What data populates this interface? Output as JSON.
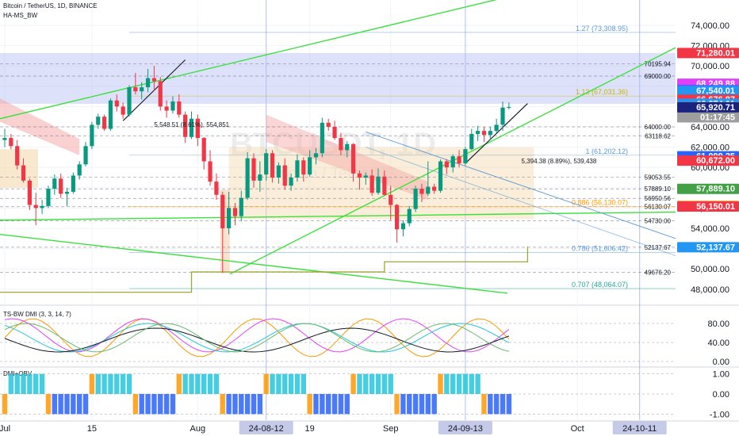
{
  "header": {
    "symbol_line": "Bitcoin / TetherUS, 1D, BINANCE",
    "indicator_1": "HA-MS_BW",
    "indicator_2": "TS-BW DMI (3, 3, 14, 7)",
    "indicator_3": "DMI+OBV"
  },
  "watermark": {
    "text": "BTCUSDT, 1D",
    "subtext": "Bitcoin / TetherUS"
  },
  "colors": {
    "up_candle": "#089981",
    "down_candle": "#f23645",
    "green_line": "#3ce03c",
    "red_tag": "#f23645",
    "blue_tag": "#2962ff",
    "green_tag": "#43a047",
    "orange_tag": "#ff9800",
    "fib_blue": "#5b9bd5",
    "zone_blue": "#b3bdf5",
    "zone_tan": "#f3d9ae"
  },
  "chart_data": [
    {
      "type": "candlestick",
      "title": "Bitcoin / TetherUS, 1D, BINANCE",
      "ylim": [
        46500,
        76500
      ],
      "x_axis": {
        "ticks": [
          {
            "label": "Jul",
            "day": 0
          },
          {
            "label": "15",
            "day": 14
          },
          {
            "label": "Aug",
            "day": 31
          },
          {
            "label": "19",
            "day": 49
          },
          {
            "label": "Sep",
            "day": 62
          },
          {
            "label": "Oct",
            "day": 92
          }
        ],
        "highlighted": [
          {
            "label": "24-08-12",
            "day": 42
          },
          {
            "label": "24-09-13",
            "day": 74
          },
          {
            "label": "24-10-11",
            "day": 102
          }
        ]
      },
      "y_axis_ticks": [
        48000,
        50000,
        52000,
        54000,
        56000,
        58000,
        60000,
        62000,
        64000,
        66000,
        68000,
        70000,
        72000,
        74000
      ],
      "y_axis_tick_labels": [
        "48,000.00",
        "50,000.00",
        "52,000.00",
        "54,000.00",
        "56,000.00",
        "58,000.00",
        "60,000.00",
        "62,000.00",
        "64,000.00",
        "66,000.00",
        "68,000.00",
        "70,000.00",
        "72,000.00",
        "74,000.00"
      ],
      "price_tags": [
        {
          "label": "71,280.01",
          "value": 71280.01,
          "color": "#f23645"
        },
        {
          "label": "68,249.88",
          "value": 68249.88,
          "color": "#e040fb"
        },
        {
          "label": "67,614.25",
          "value": 67614.25,
          "color": "#2962ff"
        },
        {
          "label": "67,540.01",
          "value": 67540.01,
          "color": "#2196f3"
        },
        {
          "label": "66,676.87",
          "value": 66676.87,
          "color": "#f23645"
        },
        {
          "label": "66,274.01",
          "value": 66274.01,
          "color": "#2196f3"
        },
        {
          "label": "65,955.77",
          "value": 65955.77,
          "color": "#9e9e9e",
          "extra": "01:17:45"
        },
        {
          "label": "65,920.71",
          "value": 65920.71,
          "color": "#1a237e"
        },
        {
          "label": "61,099.25",
          "value": 61099.25,
          "color": "#2962ff"
        },
        {
          "label": "60,672.00",
          "value": 60672.0,
          "color": "#f23645"
        },
        {
          "label": "57,889.10",
          "value": 57889.1,
          "color": "#43a047"
        },
        {
          "label": "56,204.13",
          "value": 56204.13,
          "color": "#ff9800"
        },
        {
          "label": "56,150.01",
          "value": 56150.01,
          "color": "#f23645"
        },
        {
          "label": "52,137.67",
          "value": 52137.67,
          "color": "#2196f3"
        }
      ],
      "level_labels": [
        {
          "label": "70195.94",
          "value": 70195.94
        },
        {
          "label": "69000.00",
          "value": 69000
        },
        {
          "label": "64000.00",
          "value": 64000
        },
        {
          "label": "63118.62",
          "value": 63118.62
        },
        {
          "label": "59053.55",
          "value": 59053.55
        },
        {
          "label": "57889.10",
          "value": 57889.1
        },
        {
          "label": "56950.56",
          "value": 56950.56
        },
        {
          "label": "56130.07",
          "value": 56130.07
        },
        {
          "label": "54730.00",
          "value": 54730
        },
        {
          "label": "52137.67",
          "value": 52137.67
        },
        {
          "label": "49676.20",
          "value": 49676.2
        }
      ],
      "fib_labels": [
        {
          "label": "1.27 (73,308.95)",
          "value": 73308.95,
          "color": "#5b9bd5"
        },
        {
          "label": "1.13 (67,031.36)",
          "value": 67031.36,
          "color": "#c8b400"
        },
        {
          "label": "1 (61,202.12)",
          "value": 61202.12,
          "color": "#5b9bd5"
        },
        {
          "label": "0.886 (56,130.07)",
          "value": 56130.07,
          "color": "#ff9800"
        },
        {
          "label": "0.786 (51,606.42)",
          "value": 51606.42,
          "color": "#5b9bd5"
        },
        {
          "label": "0.707 (48,064.07)",
          "value": 48064.07,
          "color": "#26a69a"
        }
      ],
      "annotations": [
        {
          "label": "5,548.51 (8.61%), 554,851",
          "day": 24,
          "value": 64000
        },
        {
          "label": "5,394.38 (8.89%), 539,438",
          "day": 83,
          "value": 60400
        }
      ],
      "ohlc": [
        [
          62700,
          63800,
          62000,
          62900
        ],
        [
          62900,
          63300,
          61800,
          62100
        ],
        [
          62100,
          62700,
          59800,
          60200
        ],
        [
          60200,
          60900,
          58500,
          58700
        ],
        [
          58700,
          58900,
          55800,
          56300
        ],
        [
          56300,
          57500,
          54300,
          56000
        ],
        [
          56000,
          56800,
          55400,
          56200
        ],
        [
          56200,
          58200,
          56000,
          57900
        ],
        [
          57900,
          59300,
          57300,
          58900
        ],
        [
          58900,
          59400,
          57000,
          57400
        ],
        [
          57400,
          58000,
          56200,
          57600
        ],
        [
          57600,
          59500,
          57400,
          59200
        ],
        [
          59200,
          60600,
          58800,
          60300
        ],
        [
          60300,
          62500,
          60100,
          62100
        ],
        [
          62100,
          64500,
          61800,
          64200
        ],
        [
          64200,
          65300,
          63800,
          65000
        ],
        [
          65000,
          65200,
          63600,
          63800
        ],
        [
          63800,
          66800,
          63600,
          66600
        ],
        [
          66600,
          67200,
          65500,
          66000
        ],
        [
          66000,
          66400,
          64800,
          65200
        ],
        [
          65200,
          68100,
          65000,
          67900
        ],
        [
          67900,
          69300,
          67200,
          67500
        ],
        [
          67500,
          68400,
          66700,
          67900
        ],
        [
          67900,
          69700,
          67400,
          68800
        ],
        [
          68800,
          70000,
          67600,
          68500
        ],
        [
          68500,
          68900,
          65600,
          66000
        ],
        [
          66000,
          66600,
          64900,
          65600
        ],
        [
          65600,
          67000,
          65300,
          66500
        ],
        [
          66500,
          67200,
          64900,
          65200
        ],
        [
          65200,
          65500,
          62400,
          63000
        ],
        [
          63000,
          65500,
          62800,
          64800
        ],
        [
          64800,
          65200,
          62100,
          62900
        ],
        [
          62900,
          63000,
          59800,
          60600
        ],
        [
          60600,
          61700,
          58200,
          58600
        ],
        [
          58600,
          59400,
          56800,
          57300
        ],
        [
          57300,
          57600,
          49600,
          54000
        ],
        [
          54000,
          57600,
          53400,
          56000
        ],
        [
          56000,
          56500,
          54300,
          55200
        ],
        [
          55200,
          57700,
          54700,
          57000
        ],
        [
          57000,
          61500,
          56800,
          60900
        ],
        [
          60900,
          61400,
          58000,
          58700
        ],
        [
          58700,
          60600,
          57600,
          59300
        ],
        [
          59300,
          61800,
          58700,
          61400
        ],
        [
          61400,
          61700,
          58500,
          59000
        ],
        [
          59000,
          60500,
          58400,
          60200
        ],
        [
          60200,
          60900,
          57800,
          58200
        ],
        [
          58200,
          59400,
          57700,
          59000
        ],
        [
          59000,
          61300,
          58600,
          60700
        ],
        [
          60700,
          61000,
          58600,
          59300
        ],
        [
          59300,
          61700,
          59100,
          61000
        ],
        [
          61000,
          61900,
          60300,
          61400
        ],
        [
          61400,
          64900,
          61000,
          64400
        ],
        [
          64400,
          64800,
          63600,
          64000
        ],
        [
          64000,
          64600,
          62700,
          62900
        ],
        [
          62900,
          63400,
          61200,
          61700
        ],
        [
          61700,
          62600,
          61000,
          62300
        ],
        [
          62300,
          62400,
          58600,
          59400
        ],
        [
          59400,
          59700,
          57800,
          59000
        ],
        [
          59000,
          59500,
          58300,
          59200
        ],
        [
          59200,
          59800,
          57200,
          57500
        ],
        [
          57500,
          59900,
          57300,
          59100
        ],
        [
          59100,
          59700,
          57200,
          57300
        ],
        [
          57300,
          58200,
          54800,
          56300
        ],
        [
          56300,
          56400,
          52600,
          53900
        ],
        [
          53900,
          54800,
          53200,
          54500
        ],
        [
          54500,
          56200,
          54200,
          55900
        ],
        [
          55900,
          58200,
          55600,
          57900
        ],
        [
          57900,
          58400,
          56600,
          57400
        ],
        [
          57400,
          60600,
          57200,
          58100
        ],
        [
          58100,
          58400,
          57400,
          57700
        ],
        [
          57700,
          60800,
          57500,
          60600
        ],
        [
          60600,
          60800,
          59300,
          60000
        ],
        [
          60000,
          61300,
          59500,
          61100
        ],
        [
          61100,
          61700,
          60000,
          60400
        ],
        [
          60400,
          62000,
          60200,
          61800
        ],
        [
          61800,
          63800,
          61700,
          63300
        ],
        [
          63300,
          64100,
          62600,
          63600
        ],
        [
          63600,
          64000,
          62500,
          63200
        ],
        [
          63200,
          64000,
          62700,
          63600
        ],
        [
          63600,
          64800,
          63400,
          64200
        ],
        [
          64200,
          66500,
          63600,
          65900
        ],
        [
          65900,
          66400,
          65700,
          65956
        ]
      ]
    },
    {
      "type": "line",
      "title": "TS-BW DMI (3, 3, 14, 7)",
      "ylim": [
        -10,
        115
      ],
      "y_axis_ticks": [
        0,
        40,
        80
      ],
      "y_axis_tick_labels": [
        "0.00",
        "40.00",
        "80.00"
      ]
    },
    {
      "type": "bar",
      "title": "DMI+OBV",
      "ylim": [
        -1.3,
        1.3
      ],
      "y_axis_ticks": [
        -1,
        0,
        1
      ],
      "y_axis_tick_labels": [
        "-1.00",
        "0.00",
        "1.00"
      ]
    }
  ]
}
